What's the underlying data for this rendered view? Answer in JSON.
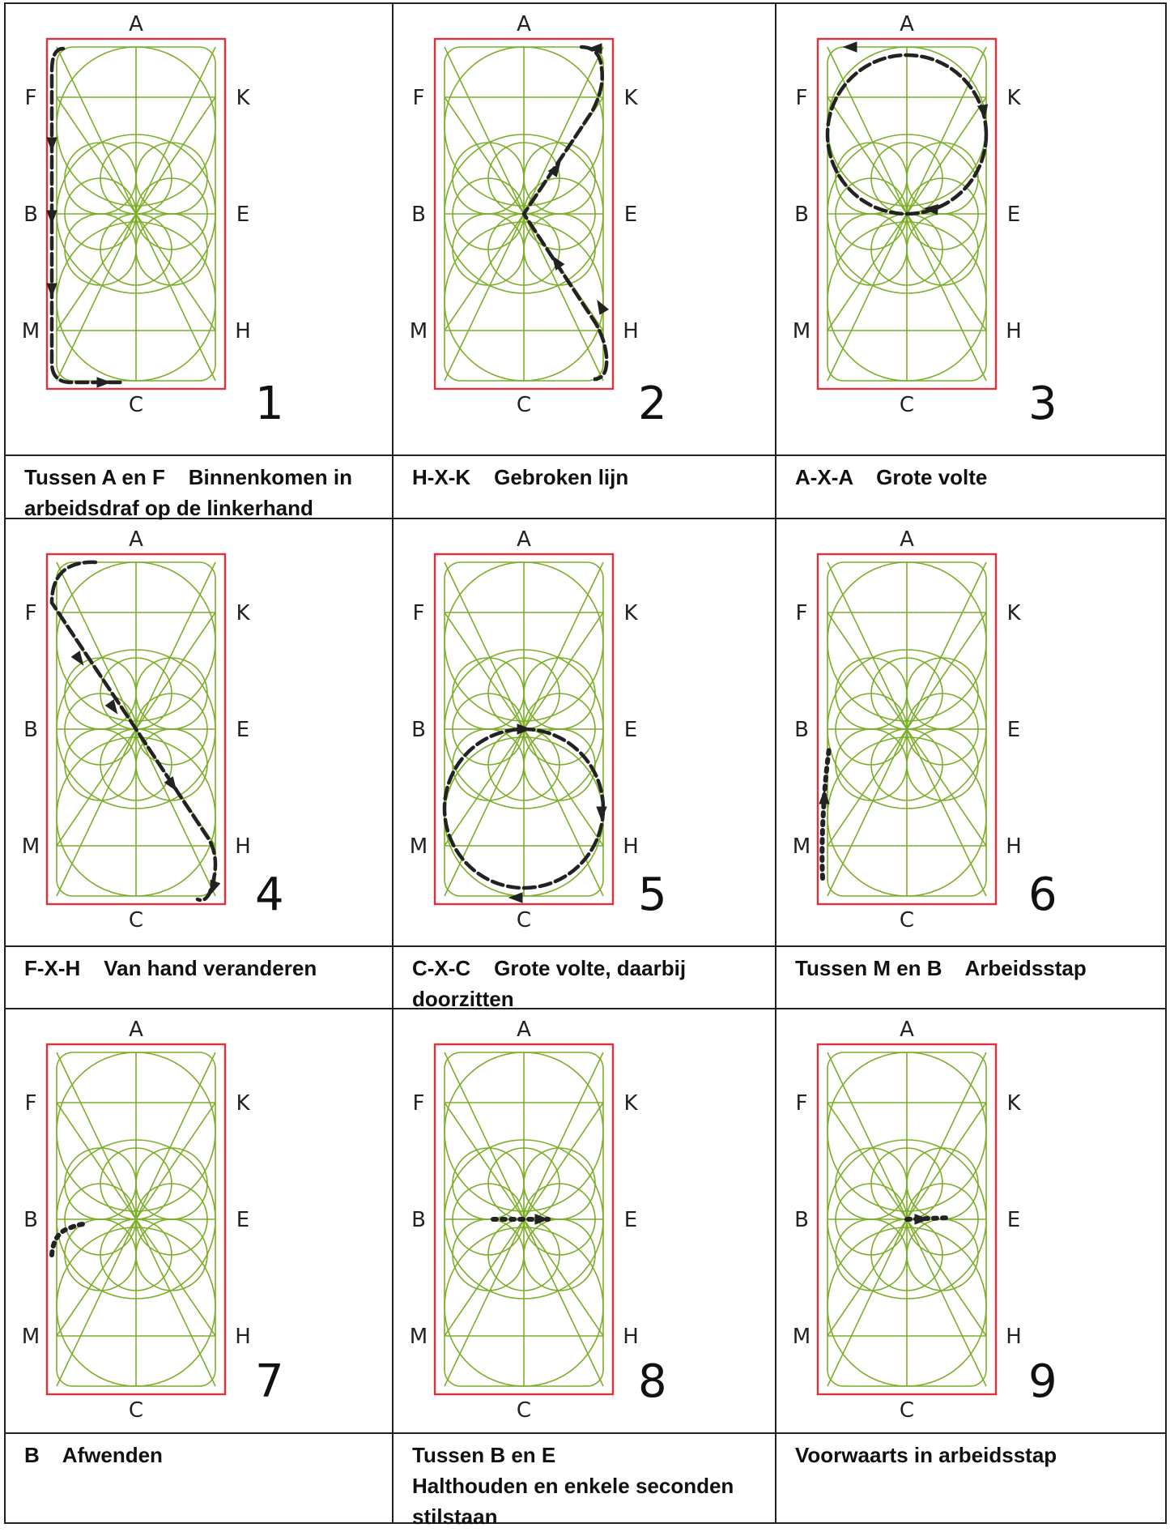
{
  "arena_letters": {
    "top": "A",
    "bottom": "C",
    "left": [
      "F",
      "B",
      "M"
    ],
    "right": [
      "K",
      "E",
      "H"
    ]
  },
  "colors": {
    "grid_line": "#7cae2a",
    "arena_border": "#e0303a",
    "route_ink": "#222222",
    "table_line": "#222222"
  },
  "figures": [
    {
      "number": "1",
      "caption_lines": [
        "Tussen A en F    Binnenkomen in",
        "arbeidsdraf op de linkerhand"
      ]
    },
    {
      "number": "2",
      "caption_lines": [
        "H-X-K    Gebroken lijn"
      ]
    },
    {
      "number": "3",
      "caption_lines": [
        "A-X-A    Grote volte"
      ]
    },
    {
      "number": "4",
      "caption_lines": [
        "F-X-H    Van hand veranderen"
      ]
    },
    {
      "number": "5",
      "caption_lines": [
        "C-X-C    Grote volte, daarbij",
        "doorzitten"
      ]
    },
    {
      "number": "6",
      "caption_lines": [
        "Tussen M en B    Arbeidsstap"
      ]
    },
    {
      "number": "7",
      "caption_lines": [
        "B    Afwenden"
      ]
    },
    {
      "number": "8",
      "caption_lines": [
        "Tussen B en E",
        "Halthouden en enkele seconden",
        "stilstaan"
      ]
    },
    {
      "number": "9",
      "caption_lines": [
        "Voorwaarts in arbeidsstap"
      ]
    }
  ]
}
